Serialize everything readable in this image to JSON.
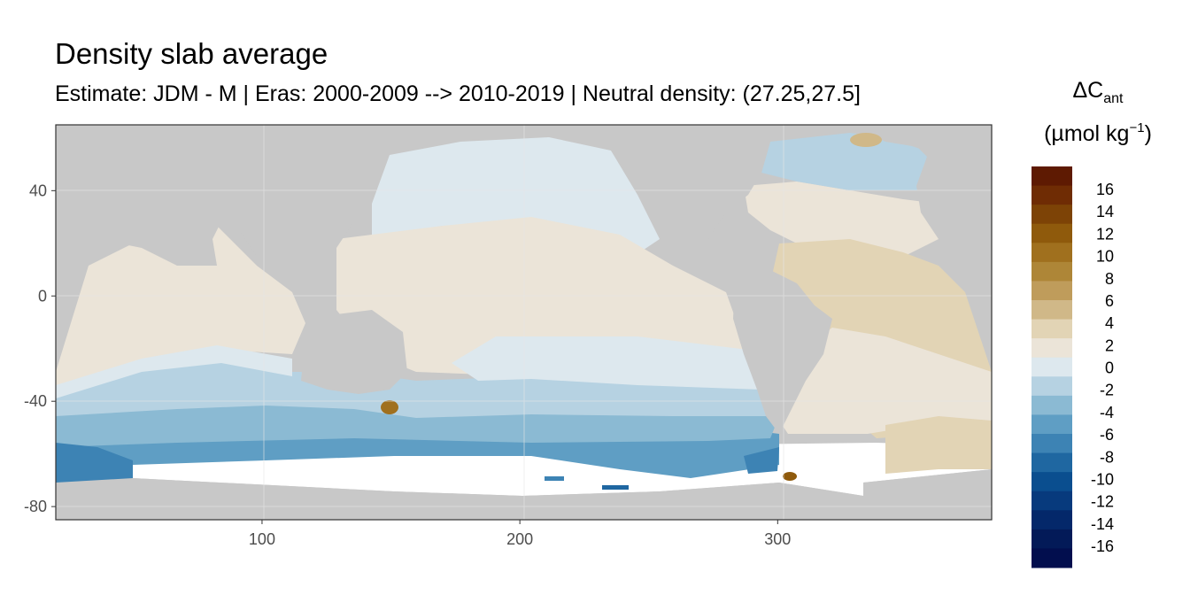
{
  "title": "Density slab average",
  "subtitle": "Estimate: JDM - M | Eras: 2000-2009 --> 2010-2019 | Neutral density: (27.25,27.5]",
  "legend": {
    "symbol": "ΔC",
    "symbol_sub": "ant",
    "unit_prefix": "(µmol kg",
    "unit_sup": "−1",
    "unit_suffix": ")",
    "labels": [
      "16",
      "14",
      "12",
      "10",
      "8",
      "6",
      "4",
      "2",
      "0",
      "-2",
      "-4",
      "-6",
      "-8",
      "-10",
      "-12",
      "-14",
      "-16"
    ],
    "colors": [
      "#5e1a02",
      "#6f2c04",
      "#7d4306",
      "#8f5a0c",
      "#a0701e",
      "#ae8637",
      "#bf9c5b",
      "#d0b888",
      "#e2d4b5",
      "#ebe4d8",
      "#dde8ee",
      "#b6d2e2",
      "#8bbad3",
      "#5f9ec4",
      "#3d83b4",
      "#1f67a1",
      "#0a4e8f",
      "#073a7d",
      "#04286a",
      "#031a58",
      "#020e4e"
    ]
  },
  "axes": {
    "x_ticks": [
      100,
      200,
      300
    ],
    "y_ticks": [
      40,
      0,
      -40,
      -80
    ],
    "x_range": [
      20,
      383
    ],
    "y_range": [
      -85,
      65
    ]
  },
  "colors": {
    "land": "#c8c8c8",
    "no_data": "#ffffff",
    "near_zero_positive": "#ebe4d8",
    "slight_positive": "#e2d4b5",
    "near_zero_negative": "#dde8ee",
    "negative_2_4": "#b6d2e2",
    "negative_4_6": "#8bbad3",
    "negative_6_8": "#5f9ec4",
    "negative_8_10": "#3d83b4",
    "positive_hotspot": "#a0701e"
  }
}
